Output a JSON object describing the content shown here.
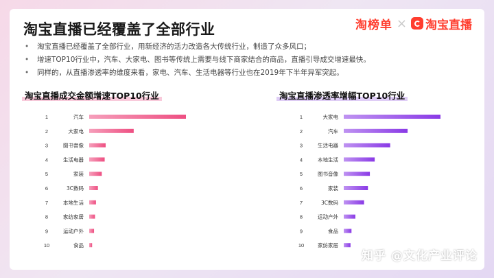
{
  "title": "淘宝直播已经覆盖了全部行业",
  "logos": {
    "left": "淘榜单",
    "separator": "×",
    "right": "淘宝直播"
  },
  "bullets": [
    "淘宝直播已经覆盖了全部行业，用新经济的活力改造各大传统行业，制造了众多风口；",
    "增速TOP10行业中，汽车、大家电、图书等传统上需要与线下商家结合的商品，直播引导成交增速最快。",
    "同样的，从直播渗透率的维度来看，家电、汽车、生活电器等行业也在2019年下半年异军突起。"
  ],
  "bullet_symbol": "•",
  "colors": {
    "left_bar": "#ee4f82",
    "right_bar": "#8a3ae6"
  },
  "chart_data": [
    {
      "type": "bar",
      "orientation": "horizontal",
      "title": "淘宝直播成交金额增速TOP10行业",
      "ranks": [
        "1",
        "2",
        "3",
        "4",
        "5",
        "6",
        "7",
        "8",
        "9",
        "10"
      ],
      "categories": [
        "汽车",
        "大家电",
        "图书音像",
        "生活电器",
        "家装",
        "3C数码",
        "本地生活",
        "家纺家居",
        "运动户外",
        "食品"
      ],
      "values": [
        100,
        46,
        17,
        16,
        13,
        9,
        7,
        6,
        5,
        3
      ],
      "value_scale": "relative bar length, top bar = 100",
      "xlim": [
        0,
        100
      ]
    },
    {
      "type": "bar",
      "orientation": "horizontal",
      "title": "淘宝直播渗透率增幅TOP10行业",
      "ranks": [
        "1",
        "2",
        "3",
        "4",
        "5",
        "6",
        "7",
        "8",
        "9",
        "10"
      ],
      "categories": [
        "大家电",
        "汽车",
        "生活电器",
        "本地生活",
        "图书音像",
        "家装",
        "3C数码",
        "运动户外",
        "食品",
        "家纺家居"
      ],
      "values": [
        100,
        66,
        48,
        32,
        27,
        25,
        21,
        12,
        8,
        7
      ],
      "value_scale": "relative bar length, top bar = 100",
      "xlim": [
        0,
        100
      ]
    }
  ],
  "watermark": "知乎 @文化产业评论"
}
